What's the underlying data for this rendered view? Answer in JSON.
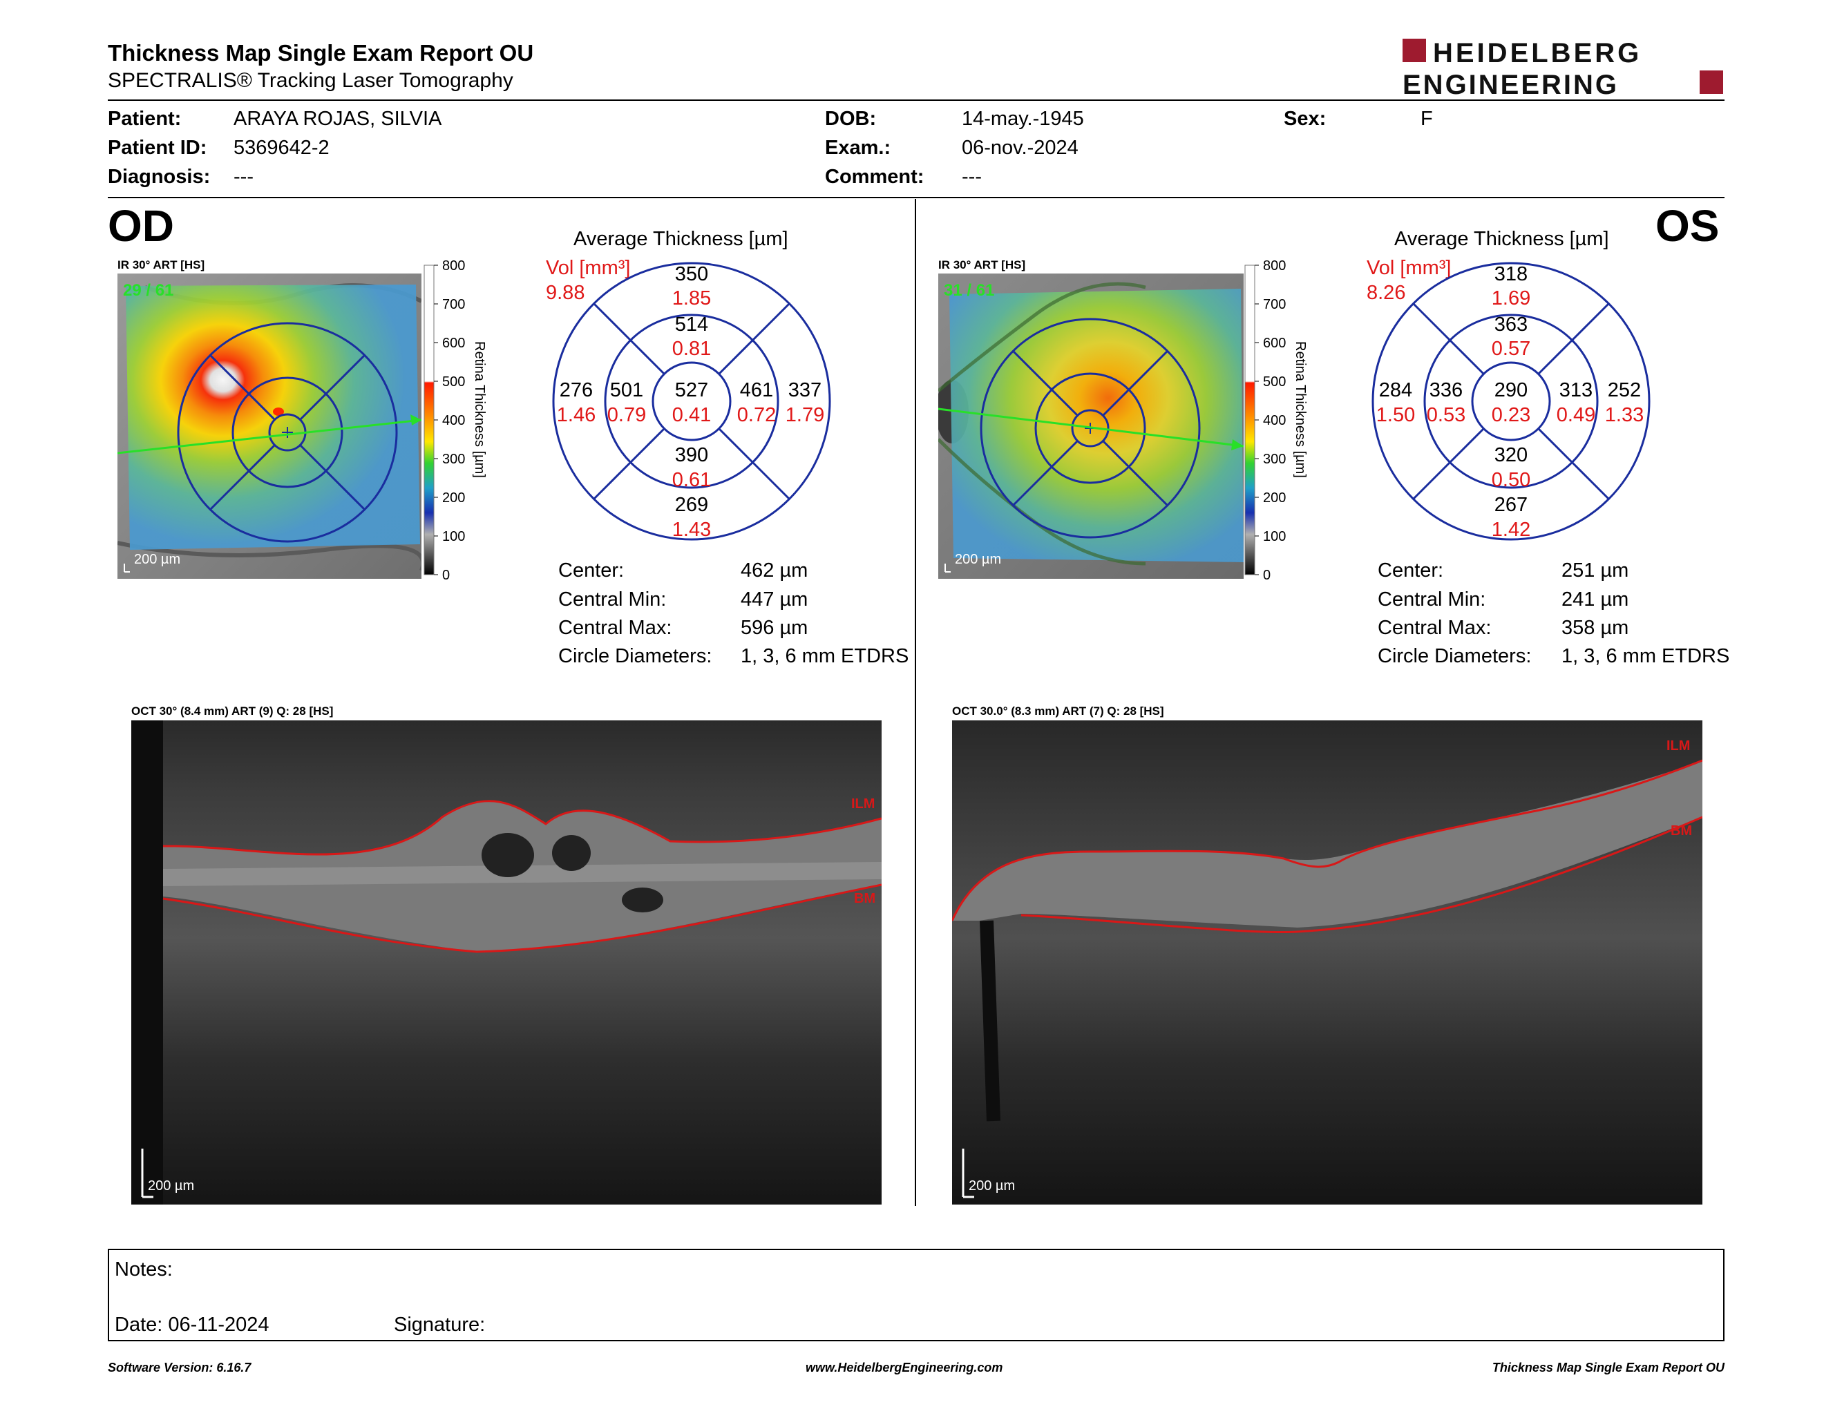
{
  "header": {
    "title": "Thickness Map Single Exam Report OU",
    "subtitle": "SPECTRALIS® Tracking Laser Tomography",
    "logo_line1": "HEIDELBERG",
    "logo_line2": "ENGINEERING"
  },
  "patient": {
    "patient_label": "Patient:",
    "patient_value": "ARAYA ROJAS, SILVIA",
    "id_label": "Patient ID:",
    "id_value": "5369642-2",
    "diagnosis_label": "Diagnosis:",
    "diagnosis_value": "---",
    "dob_label": "DOB:",
    "dob_value": "14-may.-1945",
    "exam_label": "Exam.:",
    "exam_value": "06-nov.-2024",
    "comment_label": "Comment:",
    "comment_value": "---",
    "sex_label": "Sex:",
    "sex_value": "F"
  },
  "od": {
    "eye": "OD",
    "ir_label": "IR 30° ART [HS]",
    "frame_counter": "29 / 61",
    "scale_bar": "200 µm",
    "colorbar_ticks": [
      "800",
      "700",
      "600",
      "500",
      "400",
      "300",
      "200",
      "100",
      "0"
    ],
    "colorbar_label": "Retina Thickness [µm]",
    "avg_title": "Average Thickness [µm]",
    "vol_label": "Vol [mm³]",
    "vol_value": "9.88",
    "sectors": {
      "superior_outer": {
        "t": "350",
        "v": "1.85"
      },
      "superior_inner": {
        "t": "514",
        "v": "0.81"
      },
      "temporal_outer": {
        "t": "276",
        "v": "1.46"
      },
      "temporal_inner": {
        "t": "501",
        "v": "0.79"
      },
      "center": {
        "t": "527",
        "v": "0.41"
      },
      "nasal_inner": {
        "t": "461",
        "v": "0.72"
      },
      "nasal_outer": {
        "t": "337",
        "v": "1.79"
      },
      "inferior_inner": {
        "t": "390",
        "v": "0.61"
      },
      "inferior_outer": {
        "t": "269",
        "v": "1.43"
      }
    },
    "stats": [
      {
        "label": "Center:",
        "value": "462 µm"
      },
      {
        "label": "Central Min:",
        "value": "447 µm"
      },
      {
        "label": "Central Max:",
        "value": "596 µm"
      },
      {
        "label": "Circle Diameters:",
        "value": "1, 3, 6 mm ETDRS"
      }
    ],
    "oct_label": "OCT 30° (8.4 mm) ART (9) Q: 28 [HS]",
    "oct_scale": "200 µm",
    "ilm": "ILM",
    "bm": "BM"
  },
  "os": {
    "eye": "OS",
    "ir_label": "IR 30° ART [HS]",
    "frame_counter": "31 / 61",
    "scale_bar": "200 µm",
    "colorbar_ticks": [
      "800",
      "700",
      "600",
      "500",
      "400",
      "300",
      "200",
      "100",
      "0"
    ],
    "colorbar_label": "Retina Thickness [µm]",
    "avg_title": "Average Thickness [µm]",
    "vol_label": "Vol [mm³]",
    "vol_value": "8.26",
    "sectors": {
      "superior_outer": {
        "t": "318",
        "v": "1.69"
      },
      "superior_inner": {
        "t": "363",
        "v": "0.57"
      },
      "temporal_outer": {
        "t": "284",
        "v": "1.50"
      },
      "temporal_inner": {
        "t": "336",
        "v": "0.53"
      },
      "center": {
        "t": "290",
        "v": "0.23"
      },
      "nasal_inner": {
        "t": "313",
        "v": "0.49"
      },
      "nasal_outer": {
        "t": "252",
        "v": "1.33"
      },
      "inferior_inner": {
        "t": "320",
        "v": "0.50"
      },
      "inferior_outer": {
        "t": "267",
        "v": "1.42"
      }
    },
    "stats": [
      {
        "label": "Center:",
        "value": "251 µm"
      },
      {
        "label": "Central Min:",
        "value": "241 µm"
      },
      {
        "label": "Central Max:",
        "value": "358 µm"
      },
      {
        "label": "Circle Diameters:",
        "value": "1, 3, 6 mm ETDRS"
      }
    ],
    "oct_label": "OCT 30.0° (8.3 mm) ART (7) Q: 28 [HS]",
    "oct_scale": "200 µm",
    "ilm": "ILM",
    "bm": "BM"
  },
  "notes": {
    "notes_label": "Notes:",
    "date_label": "Date: 06-11-2024",
    "signature_label": "Signature:"
  },
  "footer": {
    "software": "Software Version: 6.16.7",
    "website": "www.HeidelbergEngineering.com",
    "report_name": "Thickness Map Single Exam Report OU"
  },
  "colors": {
    "ring": "#1a2d9e",
    "volume_red": "#e01818",
    "segmentation_red": "#d81818",
    "scan_line": "#28e028",
    "logo_red": "#9e1b2f"
  }
}
